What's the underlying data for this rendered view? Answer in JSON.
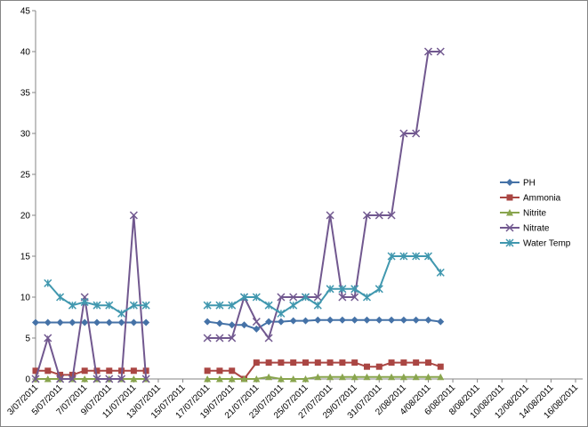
{
  "chart_data": {
    "type": "line",
    "categories": [
      "3/07/2011",
      null,
      "5/07/2011",
      null,
      "7/07/2011",
      null,
      "9/07/2011",
      null,
      "11/07/2011",
      null,
      "13/07/2011",
      null,
      "15/07/2011",
      null,
      "17/07/2011",
      null,
      "19/07/2011",
      null,
      "21/07/2011",
      null,
      "23/07/2011",
      null,
      "25/07/2011",
      null,
      "27/07/2011",
      null,
      "29/07/2011",
      null,
      "31/07/2011",
      null,
      "2/08/2011",
      null,
      "4/08/2011",
      null,
      "6/08/2011",
      null,
      "8/08/2011",
      null,
      "10/08/2011",
      null,
      "12/08/2011",
      null,
      "14/08/2011",
      null,
      "16/08/2011"
    ],
    "series": [
      {
        "name": "PH",
        "color": "#4572A7",
        "marker": "diamond",
        "values": [
          6.9,
          6.9,
          6.9,
          6.9,
          6.9,
          6.9,
          6.9,
          6.9,
          6.9,
          6.9,
          null,
          null,
          null,
          null,
          7.0,
          6.8,
          6.6,
          6.6,
          6.1,
          7.0,
          7.0,
          7.1,
          7.1,
          7.2,
          7.2,
          7.2,
          7.2,
          7.2,
          7.2,
          7.2,
          7.2,
          7.2,
          7.2,
          7.0,
          null,
          null,
          null,
          null,
          null,
          null,
          null,
          null,
          null,
          null,
          null
        ]
      },
      {
        "name": "Ammonia",
        "color": "#AA4643",
        "marker": "square",
        "values": [
          1,
          1,
          0.5,
          0.5,
          1,
          1,
          1,
          1,
          1,
          1,
          null,
          null,
          null,
          null,
          1,
          1,
          1,
          0,
          2,
          2,
          2,
          2,
          2,
          2,
          2,
          2,
          2,
          1.5,
          1.5,
          2,
          2,
          2,
          2,
          1.5,
          null,
          null,
          null,
          null,
          null,
          null,
          null,
          null,
          null,
          null,
          null
        ]
      },
      {
        "name": "Nitrite",
        "color": "#89A54E",
        "marker": "triangle",
        "values": [
          0,
          0,
          0,
          0,
          0,
          0,
          0,
          0,
          0,
          0,
          null,
          null,
          null,
          null,
          0,
          0,
          0,
          0,
          0,
          0.25,
          0,
          0,
          0,
          0.25,
          0.25,
          0.25,
          0.25,
          0.25,
          0.25,
          0.25,
          0.25,
          0.25,
          0.25,
          0.25,
          null,
          null,
          null,
          null,
          null,
          null,
          null,
          null,
          null,
          null,
          null
        ]
      },
      {
        "name": "Nitrate",
        "color": "#71588F",
        "marker": "x",
        "values": [
          0,
          5,
          0,
          0,
          10,
          0,
          0,
          0,
          20,
          0,
          null,
          null,
          null,
          null,
          5,
          5,
          5,
          10,
          7,
          5,
          10,
          10,
          10,
          10,
          20,
          10,
          10,
          20,
          20,
          20,
          30,
          30,
          40,
          40,
          null,
          null,
          null,
          null,
          null,
          null,
          null,
          null,
          null,
          null,
          null
        ]
      },
      {
        "name": "Water Temp",
        "color": "#4198AF",
        "marker": "star",
        "values": [
          null,
          11.7,
          10,
          9,
          9.4,
          9,
          9,
          8,
          9,
          9,
          null,
          null,
          null,
          null,
          9,
          9,
          9,
          10,
          10,
          9,
          8,
          9,
          10,
          9,
          11,
          11,
          11,
          10,
          11,
          15,
          15,
          15,
          15,
          13,
          null,
          null,
          null,
          null,
          null,
          null,
          null,
          null,
          null,
          null,
          null
        ]
      }
    ],
    "ylim": [
      0,
      45
    ],
    "yticks": [
      0,
      5,
      10,
      15,
      20,
      25,
      30,
      35,
      40,
      45
    ],
    "grid": false,
    "legend": "right"
  }
}
